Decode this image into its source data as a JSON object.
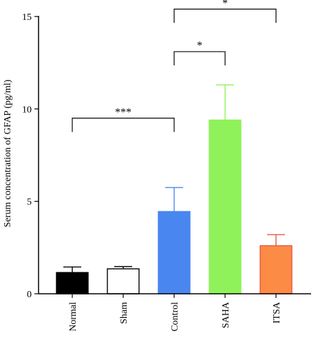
{
  "chart_data": {
    "type": "bar",
    "ylabel": "Serum concentration of GFAP (pg/ml)",
    "ylim": [
      0,
      15
    ],
    "yticks": [
      "0",
      "5",
      "10",
      "15"
    ],
    "categories": [
      "Normal",
      "Sham",
      "Control",
      "SAHA",
      "ITSA"
    ],
    "values": [
      1.15,
      1.35,
      4.45,
      9.4,
      2.6
    ],
    "errors": [
      0.3,
      0.12,
      1.3,
      1.9,
      0.6
    ],
    "fill_colors": [
      "#000000",
      "#ffffff",
      "#4a86f0",
      "#8ff25a",
      "#fb8b45"
    ],
    "stroke_colors": [
      "#000000",
      "#000000",
      "#4a86f0",
      "#8ff25a",
      "#e8543f"
    ],
    "error_colors": [
      "#000000",
      "#000000",
      "#4a86f0",
      "#8ff25a",
      "#e8543f"
    ],
    "significance": [
      {
        "from": "Normal",
        "to": "Control",
        "label": "***",
        "y": 9.5
      },
      {
        "from": "Control",
        "to": "SAHA",
        "label": "*",
        "y": 13.1
      },
      {
        "from": "Control",
        "to": "ITSA",
        "label": "*",
        "y": 15.4
      }
    ]
  }
}
